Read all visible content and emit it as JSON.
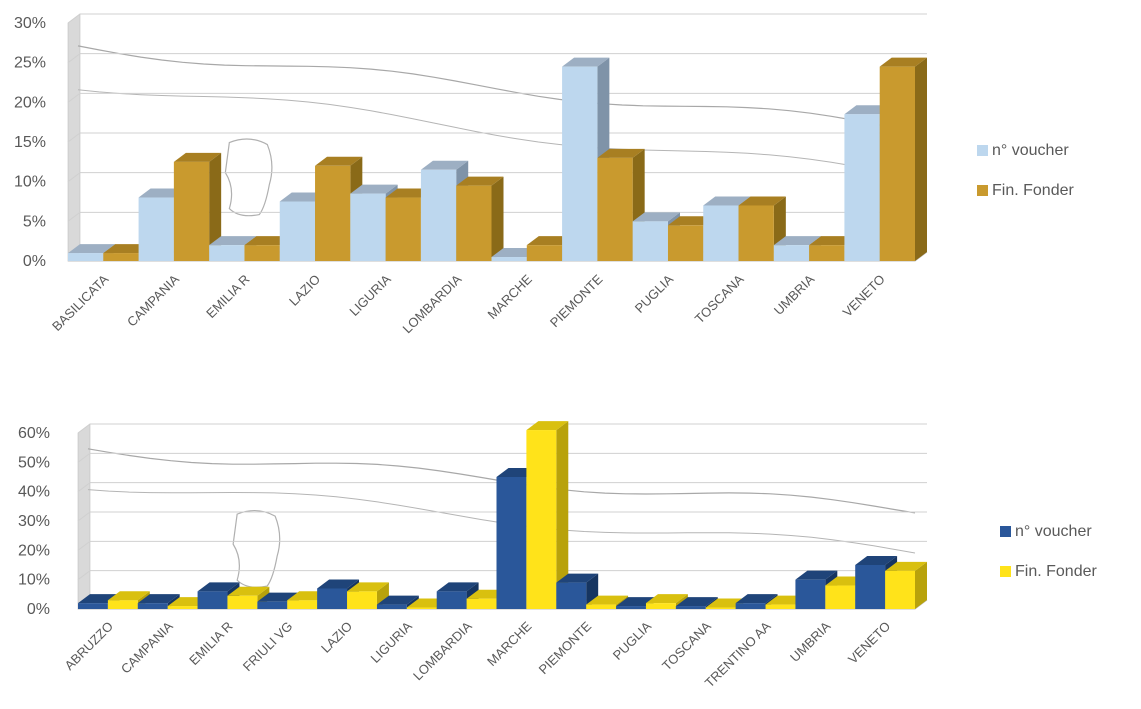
{
  "chart_data": [
    {
      "type": "bar",
      "categories": [
        "BASILICATA",
        "CAMPANIA",
        "EMILIA R",
        "LAZIO",
        "LIGURIA",
        "LOMBARDIA",
        "MARCHE",
        "PIEMONTE",
        "PUGLIA",
        "TOSCANA",
        "UMBRIA",
        "VENETO"
      ],
      "series": [
        {
          "name": "n° voucher",
          "values": [
            1,
            8,
            2,
            7.5,
            8.5,
            11.5,
            0.5,
            24.5,
            5,
            7,
            2,
            18.5
          ]
        },
        {
          "name": "Fin. Fonder",
          "values": [
            1,
            12.5,
            2,
            12,
            8,
            9.5,
            2,
            13,
            4.5,
            7,
            2,
            24.5
          ]
        }
      ],
      "ylim": [
        0,
        30
      ],
      "yticks": [
        0,
        5,
        10,
        15,
        20,
        25,
        30
      ],
      "ytick_suffix": "%",
      "grid": true,
      "legend": "right",
      "colors": {
        "s0_front": "#bdd7ee",
        "s0_top": "#9dafc3",
        "s0_side": "#7f93a8",
        "s1_front": "#c99a2e",
        "s1_top": "#a87f22",
        "s1_side": "#8a6a18"
      }
    },
    {
      "type": "bar",
      "categories": [
        "ABRUZZO",
        "CAMPANIA",
        "EMILIA R",
        "FRIULI VG",
        "LAZIO",
        "LIGURIA",
        "LOMBARDIA",
        "MARCHE",
        "PIEMONTE",
        "PUGLIA",
        "TOSCANA",
        "TRENTINO AA",
        "UMBRIA",
        "VENETO"
      ],
      "series": [
        {
          "name": "n° voucher",
          "values": [
            2,
            2,
            6,
            2.5,
            7,
            1.5,
            6,
            45,
            9,
            1,
            1,
            2,
            10,
            15
          ]
        },
        {
          "name": "Fin. Fonder",
          "values": [
            3,
            1,
            4.5,
            3,
            6,
            0.5,
            3.5,
            61,
            1.5,
            2,
            0.5,
            1.5,
            8,
            13
          ]
        }
      ],
      "ylim": [
        0,
        60
      ],
      "yticks": [
        0,
        10,
        20,
        30,
        40,
        50,
        60
      ],
      "ytick_suffix": "%",
      "grid": true,
      "legend": "right",
      "colors": {
        "s0_front": "#2a579a",
        "s0_top": "#1f4479",
        "s0_side": "#163561",
        "s1_front": "#ffe31a",
        "s1_top": "#d9c00f",
        "s1_side": "#b8a20b"
      }
    }
  ]
}
